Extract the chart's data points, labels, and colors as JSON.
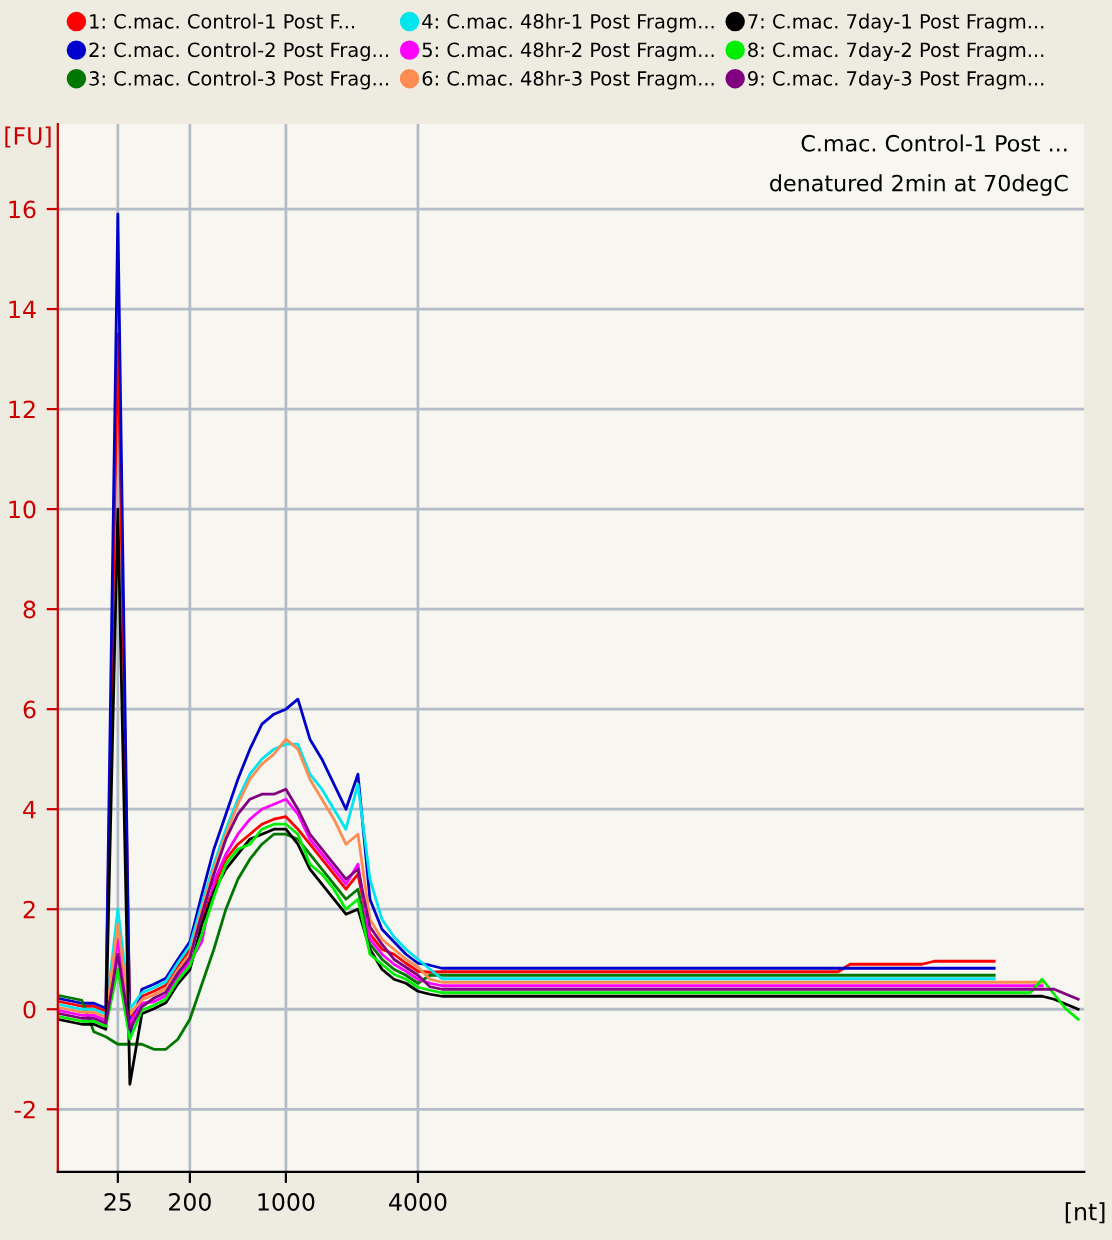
{
  "chart_data": {
    "type": "line",
    "xlabel": "[nt]",
    "ylabel": "[FU]",
    "annotations": [
      "C.mac. Control-1 Post ...",
      "denatured 2min at 70degC"
    ],
    "categories": [
      null,
      null,
      null,
      null,
      null,
      "25",
      null,
      null,
      null,
      null,
      null,
      "200",
      null,
      null,
      null,
      null,
      null,
      null,
      null,
      "1000",
      null,
      null,
      null,
      null,
      null,
      null,
      null,
      null,
      null,
      null,
      "4000",
      null,
      null,
      null,
      null,
      null,
      null,
      null,
      null,
      null,
      null,
      null,
      null,
      null,
      null,
      null,
      null,
      null,
      null,
      null,
      null,
      null,
      null,
      null,
      null,
      null,
      null,
      null,
      null,
      null,
      null,
      null,
      null,
      null,
      null,
      null,
      null,
      null,
      null,
      null,
      null,
      null,
      null,
      null,
      null,
      null,
      null,
      null,
      null,
      null,
      null,
      null,
      null,
      null,
      null,
      null
    ],
    "ylim": [
      -3.25,
      17.7
    ],
    "yticks": [
      -2,
      0,
      2,
      4,
      6,
      8,
      10,
      12,
      14,
      16
    ],
    "grid": true,
    "legend": "top",
    "line_style": "solid",
    "marker": "none",
    "series": [
      {
        "name": "1: C.mac. Control-1 Post F...",
        "color": "#ff0000",
        "values": [
          0.16,
          0.11,
          0.06,
          0.06,
          -0.04,
          13.5,
          -0.2,
          0.26,
          0.36,
          0.48,
          0.86,
          1.19,
          1.8,
          2.45,
          3.0,
          3.3,
          3.5,
          3.7,
          3.8,
          3.85,
          3.6,
          3.3,
          3.0,
          2.7,
          2.4,
          2.7,
          1.5,
          1.2,
          1.1,
          0.92,
          0.76,
          0.74,
          0.75,
          0.75,
          0.75,
          0.75,
          0.75,
          0.75,
          0.75,
          0.75,
          0.75,
          0.75,
          0.75,
          0.75,
          0.75,
          0.75,
          0.75,
          0.75,
          0.75,
          0.75,
          0.75,
          0.75,
          0.75,
          0.75,
          0.75,
          0.75,
          0.75,
          0.75,
          0.75,
          0.75,
          0.75,
          0.75,
          0.75,
          0.75,
          0.75,
          0.75,
          0.9,
          0.9,
          0.9,
          0.9,
          0.9,
          0.9,
          0.9,
          0.96,
          0.96,
          0.96,
          0.96,
          0.96,
          0.96,
          null,
          null,
          null,
          null,
          null,
          null,
          null
        ]
      },
      {
        "name": "2: C.mac. Control-2 Post Frag...",
        "color": "#0000cc",
        "values": [
          0.22,
          0.17,
          0.12,
          0.12,
          0.02,
          15.9,
          -0.5,
          0.4,
          0.5,
          0.62,
          1.0,
          1.35,
          2.3,
          3.2,
          3.9,
          4.6,
          5.2,
          5.7,
          5.9,
          6.0,
          6.2,
          5.4,
          5.0,
          4.5,
          4.0,
          4.7,
          2.2,
          1.6,
          1.35,
          1.1,
          0.92,
          0.88,
          0.82,
          0.82,
          0.82,
          0.82,
          0.82,
          0.82,
          0.82,
          0.82,
          0.82,
          0.82,
          0.82,
          0.82,
          0.82,
          0.82,
          0.82,
          0.82,
          0.82,
          0.82,
          0.82,
          0.82,
          0.82,
          0.82,
          0.82,
          0.82,
          0.82,
          0.82,
          0.82,
          0.82,
          0.82,
          0.82,
          0.82,
          0.82,
          0.82,
          0.82,
          0.82,
          0.82,
          0.82,
          0.82,
          0.82,
          0.82,
          0.82,
          0.82,
          0.82,
          0.82,
          0.82,
          0.82,
          0.82,
          null,
          null,
          null,
          null,
          null,
          null,
          null
        ]
      },
      {
        "name": "3: C.mac. Control-3 Post Frag...",
        "color": "#007700",
        "values": [
          0.28,
          0.23,
          0.18,
          -0.45,
          -0.55,
          -0.7,
          -0.7,
          -0.7,
          -0.8,
          -0.8,
          -0.6,
          -0.2,
          0.5,
          1.2,
          2.0,
          2.6,
          3.0,
          3.3,
          3.5,
          3.5,
          3.4,
          3.1,
          2.8,
          2.5,
          2.2,
          2.4,
          1.3,
          1.0,
          0.8,
          0.68,
          0.52,
          0.68,
          0.68,
          0.68,
          0.68,
          0.68,
          0.68,
          0.68,
          0.68,
          0.68,
          0.68,
          0.68,
          0.68,
          0.68,
          0.68,
          0.68,
          0.68,
          0.68,
          0.68,
          0.68,
          0.68,
          0.68,
          0.68,
          0.68,
          0.68,
          0.68,
          0.68,
          0.68,
          0.68,
          0.68,
          0.68,
          0.68,
          0.68,
          0.68,
          0.68,
          0.68,
          0.68,
          0.68,
          0.68,
          0.68,
          0.68,
          0.68,
          0.68,
          0.68,
          0.68,
          0.68,
          0.68,
          0.68,
          0.68,
          null,
          null,
          null,
          null,
          null,
          null,
          null
        ]
      },
      {
        "name": "4: C.mac. 48hr-1 Post Fragm...",
        "color": "#00e5ee",
        "values": [
          0.1,
          0.05,
          0,
          0,
          -0.1,
          2.0,
          0,
          0.33,
          0.43,
          0.55,
          0.93,
          1.27,
          2.1,
          2.9,
          3.6,
          4.2,
          4.7,
          5.0,
          5.2,
          5.3,
          5.3,
          4.7,
          4.4,
          4.0,
          3.6,
          4.5,
          2.6,
          1.8,
          1.45,
          1.2,
          1.0,
          0.8,
          0.61,
          0.61,
          0.61,
          0.61,
          0.61,
          0.61,
          0.61,
          0.61,
          0.61,
          0.61,
          0.61,
          0.61,
          0.61,
          0.61,
          0.61,
          0.61,
          0.61,
          0.61,
          0.61,
          0.61,
          0.61,
          0.61,
          0.61,
          0.61,
          0.61,
          0.61,
          0.61,
          0.61,
          0.61,
          0.61,
          0.61,
          0.61,
          0.61,
          0.61,
          0.61,
          0.61,
          0.61,
          0.61,
          0.61,
          0.61,
          0.61,
          0.61,
          0.61,
          0.61,
          0.61,
          0.61,
          0.61,
          null,
          null,
          null,
          null,
          null,
          null,
          null
        ]
      },
      {
        "name": "5: C.mac. 48hr-2 Post Fragm...",
        "color": "#ff00ff",
        "values": [
          -0.02,
          -0.07,
          -0.12,
          -0.12,
          -0.22,
          1.4,
          -0.3,
          0.12,
          0.15,
          0.27,
          0.65,
          0.95,
          1.35,
          2.55,
          3.1,
          3.5,
          3.8,
          4.0,
          4.1,
          4.2,
          3.9,
          3.4,
          3.1,
          2.8,
          2.5,
          2.9,
          1.4,
          1.1,
          0.9,
          0.76,
          0.6,
          0.52,
          0.47,
          0.47,
          0.47,
          0.47,
          0.47,
          0.47,
          0.47,
          0.47,
          0.47,
          0.47,
          0.47,
          0.47,
          0.47,
          0.47,
          0.47,
          0.47,
          0.47,
          0.47,
          0.47,
          0.47,
          0.47,
          0.47,
          0.47,
          0.47,
          0.47,
          0.47,
          0.47,
          0.47,
          0.47,
          0.47,
          0.47,
          0.47,
          0.47,
          0.47,
          0.47,
          0.47,
          0.47,
          0.47,
          0.47,
          0.47,
          0.47,
          0.47,
          0.47,
          0.47,
          0.47,
          0.47,
          0.47,
          0.47,
          0.47,
          0.47,
          0.47,
          null,
          null,
          null
        ]
      },
      {
        "name": "6: C.mac. 48hr-3 Post Fragm...",
        "color": "#ff8c50",
        "values": [
          0.04,
          -0.01,
          -0.06,
          -0.06,
          -0.16,
          1.7,
          -0.1,
          0.19,
          0.29,
          0.41,
          0.79,
          1.11,
          2.0,
          2.8,
          3.5,
          4.1,
          4.6,
          4.9,
          5.1,
          5.4,
          5.2,
          4.6,
          4.2,
          3.8,
          3.3,
          3.5,
          1.8,
          1.4,
          1.2,
          1.0,
          0.84,
          0.6,
          0.54,
          0.54,
          0.54,
          0.54,
          0.54,
          0.54,
          0.54,
          0.54,
          0.54,
          0.54,
          0.54,
          0.54,
          0.54,
          0.54,
          0.54,
          0.54,
          0.54,
          0.54,
          0.54,
          0.54,
          0.54,
          0.54,
          0.54,
          0.54,
          0.54,
          0.54,
          0.54,
          0.54,
          0.54,
          0.54,
          0.54,
          0.54,
          0.54,
          0.54,
          0.54,
          0.54,
          0.54,
          0.54,
          0.54,
          0.54,
          0.54,
          0.54,
          0.54,
          0.54,
          0.54,
          0.54,
          0.54,
          0.54,
          0.54,
          0.54,
          0.54,
          null,
          null,
          null
        ]
      },
      {
        "name": "7: C.mac. 7day-1 Post Fragm...",
        "color": "#000000",
        "values": [
          -0.2,
          -0.25,
          -0.3,
          -0.3,
          -0.4,
          10.0,
          -1.5,
          -0.09,
          0.01,
          0.13,
          0.51,
          0.79,
          1.7,
          2.35,
          2.8,
          3.1,
          3.4,
          3.5,
          3.6,
          3.6,
          3.3,
          2.8,
          2.5,
          2.2,
          1.9,
          2.0,
          1.2,
          0.8,
          0.6,
          0.52,
          0.36,
          0.3,
          0.26,
          0.26,
          0.26,
          0.26,
          0.26,
          0.26,
          0.26,
          0.26,
          0.26,
          0.26,
          0.26,
          0.26,
          0.26,
          0.26,
          0.26,
          0.26,
          0.26,
          0.26,
          0.26,
          0.26,
          0.26,
          0.26,
          0.26,
          0.26,
          0.26,
          0.26,
          0.26,
          0.26,
          0.26,
          0.26,
          0.26,
          0.26,
          0.26,
          0.26,
          0.26,
          0.26,
          0.26,
          0.26,
          0.26,
          0.26,
          0.26,
          0.26,
          0.26,
          0.26,
          0.26,
          0.26,
          0.26,
          0.26,
          0.26,
          0.26,
          0.26,
          0.2,
          0.1,
          0
        ]
      },
      {
        "name": "8: C.mac. 7day-2 Post Fragm...",
        "color": "#00ee00",
        "values": [
          -0.14,
          -0.19,
          -0.24,
          -0.24,
          -0.34,
          0.8,
          -0.6,
          -0.02,
          0.08,
          0.2,
          0.58,
          0.87,
          1.5,
          2.25,
          2.9,
          3.2,
          3.3,
          3.6,
          3.7,
          3.7,
          3.5,
          2.9,
          2.7,
          2.4,
          2.0,
          2.2,
          1.1,
          0.9,
          0.7,
          0.6,
          0.44,
          0.38,
          0.33,
          0.33,
          0.33,
          0.33,
          0.33,
          0.33,
          0.33,
          0.33,
          0.33,
          0.33,
          0.33,
          0.33,
          0.33,
          0.33,
          0.33,
          0.33,
          0.33,
          0.33,
          0.33,
          0.33,
          0.33,
          0.33,
          0.33,
          0.33,
          0.33,
          0.33,
          0.33,
          0.33,
          0.33,
          0.33,
          0.33,
          0.33,
          0.33,
          0.33,
          0.33,
          0.33,
          0.33,
          0.33,
          0.33,
          0.33,
          0.33,
          0.33,
          0.33,
          0.33,
          0.33,
          0.33,
          0.33,
          0.33,
          0.33,
          0.33,
          0.6,
          0.3,
          0,
          -0.2
        ]
      },
      {
        "name": "9: C.mac. 7day-3 Post Fragm...",
        "color": "#800080",
        "values": [
          -0.08,
          -0.13,
          -0.18,
          -0.18,
          -0.28,
          1.1,
          -0.4,
          0.05,
          0.22,
          0.34,
          0.72,
          1.03,
          1.9,
          2.7,
          3.4,
          3.9,
          4.2,
          4.3,
          4.3,
          4.4,
          4.0,
          3.5,
          3.2,
          2.9,
          2.6,
          2.8,
          1.65,
          1.3,
          1.0,
          0.84,
          0.68,
          0.45,
          0.4,
          0.4,
          0.4,
          0.4,
          0.4,
          0.4,
          0.4,
          0.4,
          0.4,
          0.4,
          0.4,
          0.4,
          0.4,
          0.4,
          0.4,
          0.4,
          0.4,
          0.4,
          0.4,
          0.4,
          0.4,
          0.4,
          0.4,
          0.4,
          0.4,
          0.4,
          0.4,
          0.4,
          0.4,
          0.4,
          0.4,
          0.4,
          0.4,
          0.4,
          0.4,
          0.4,
          0.4,
          0.4,
          0.4,
          0.4,
          0.4,
          0.4,
          0.4,
          0.4,
          0.4,
          0.4,
          0.4,
          0.4,
          0.4,
          0.4,
          0.4,
          0.4,
          0.3,
          0.2
        ]
      }
    ]
  }
}
